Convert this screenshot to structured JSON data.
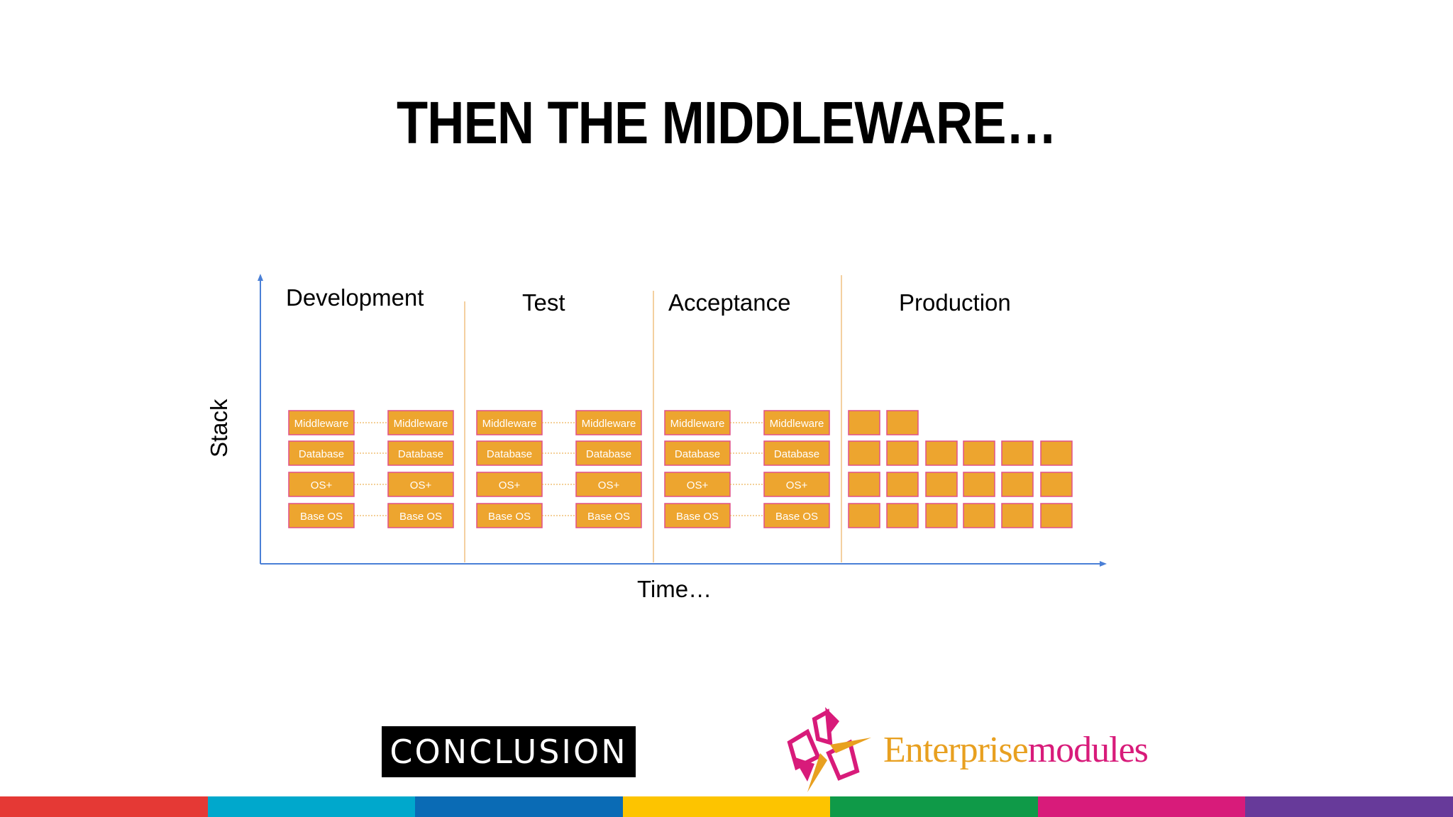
{
  "slide": {
    "title": "THEN THE MIDDLEWARE…"
  },
  "diagram": {
    "y_axis_label": "Stack",
    "x_axis_label": "Time…",
    "stages": [
      "Development",
      "Test",
      "Acceptance",
      "Production"
    ],
    "layers": [
      "Middleware",
      "Database",
      "OS+",
      "Base OS"
    ],
    "production_column_heights": [
      4,
      4,
      3,
      3,
      3,
      3
    ],
    "colors": {
      "box_fill": "#eda52f",
      "box_stroke": "#e0508a",
      "axis": "#4a7fd6",
      "separator": "#f0c080",
      "connector": "#e8a030"
    }
  },
  "logos": {
    "conclusion": "CONCLUSION",
    "enterprise_part": "Enterprise",
    "modules_part": "modules"
  },
  "footer": {
    "bar_colors": [
      "#e53935",
      "#00a8cc",
      "#0a6bb5",
      "#fdc400",
      "#0f9a48",
      "#d81b7a",
      "#673a9a"
    ]
  }
}
